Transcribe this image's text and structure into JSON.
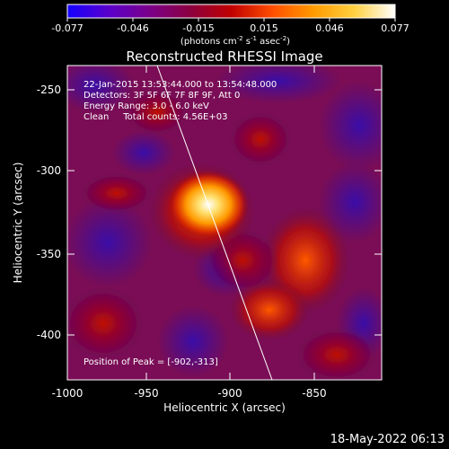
{
  "colorbar": {
    "ticks": [
      "-0.077",
      "-0.046",
      "-0.015",
      "0.015",
      "0.046",
      "0.077"
    ],
    "unit_label": "(photons cm",
    "unit_exp1": "-2",
    "unit_mid": " s",
    "unit_exp2": "-1",
    "unit_tail": " asec",
    "unit_exp3": "-2",
    "unit_close": ")",
    "colors": [
      "#1400ff",
      "#5a00cc",
      "#7a008a",
      "#8c0040",
      "#c00000",
      "#ff4d00",
      "#ff9a00",
      "#ffd040",
      "#ffffff"
    ]
  },
  "plot": {
    "title": "Reconstructed RHESSI Image",
    "xlabel": "Heliocentric X (arcsec)",
    "ylabel": "Heliocentric Y (arcsec)",
    "xticks": [
      "-1000",
      "-950",
      "-900",
      "-850"
    ],
    "yticks": [
      "-250",
      "-300",
      "-350",
      "-400"
    ],
    "info": [
      "22-Jan-2015 13:53:44.000 to 13:54:48.000",
      "Detectors: 3F 5F 6F 7F 8F 9F, Att 0",
      "Energy Range: 3.0 - 6.0 keV",
      "Clean     Total counts: 4.56E+03"
    ],
    "peak_label": "Position of Peak = [-902,-313]"
  },
  "footer": {
    "timestamp": "18-May-2022 06:13"
  }
}
